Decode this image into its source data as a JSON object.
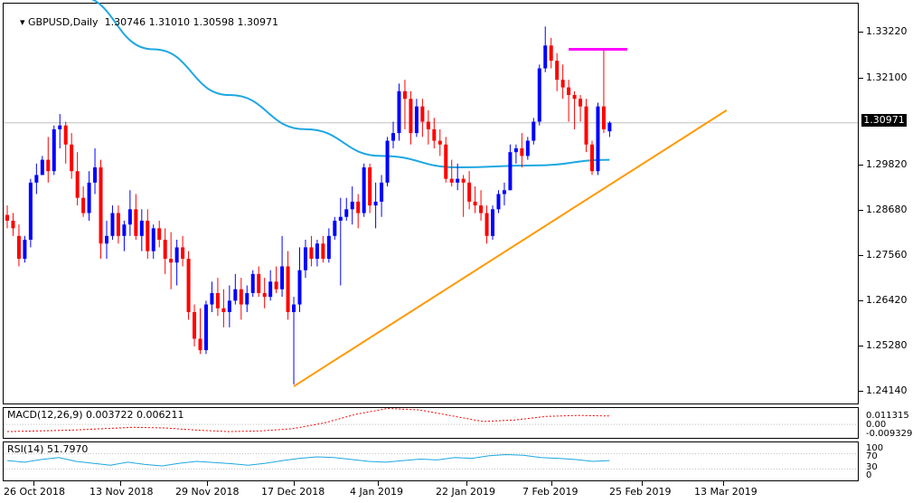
{
  "header": {
    "symbol_label": "GBPUSD,Daily",
    "ohlc_text": "1.30746 1.31010 1.30598 1.30971"
  },
  "price_axis": {
    "labels": [
      "1.33220",
      "1.32100",
      "1.30971",
      "1.29820",
      "1.28680",
      "1.27560",
      "1.26420",
      "1.25280",
      "1.24140"
    ],
    "current_price": "1.30971"
  },
  "macd": {
    "label": "MACD(12,26,9) 0.003722 0.006211",
    "axis_labels": [
      "0.011315",
      "0.00",
      "-0.009329"
    ]
  },
  "rsi": {
    "label": "RSI(14) 51.7970",
    "axis_labels": [
      "100",
      "70",
      "30",
      "0"
    ]
  },
  "date_axis": {
    "labels": [
      "26 Oct 2018",
      "13 Nov 2018",
      "29 Nov 2018",
      "17 Dec 2018",
      "4 Jan 2019",
      "22 Jan 2019",
      "7 Feb 2019",
      "25 Feb 2019",
      "13 Mar 2019"
    ]
  },
  "colors": {
    "bull": "#0000ff",
    "bear": "#ff0000",
    "ma": "#1ea7e1",
    "trendline": "#ff9900",
    "resistance": "#ff00ff",
    "macd_signal": "#ff0000",
    "rsi_line": "#1ea7e1",
    "current_price_bg": "#000000"
  },
  "chart_data": {
    "type": "candlestick",
    "title": "GBPUSD,Daily",
    "timeframe": "Daily",
    "last_ohlc": {
      "open": 1.30746,
      "high": 1.3101,
      "low": 1.30598,
      "close": 1.30971
    },
    "ylim": [
      1.236,
      1.341
    ],
    "candles": [
      {
        "o": 1.2855,
        "h": 1.288,
        "l": 1.282,
        "c": 1.284
      },
      {
        "o": 1.284,
        "h": 1.286,
        "l": 1.28,
        "c": 1.282
      },
      {
        "o": 1.28,
        "h": 1.283,
        "l": 1.272,
        "c": 1.274
      },
      {
        "o": 1.274,
        "h": 1.28,
        "l": 1.273,
        "c": 1.279
      },
      {
        "o": 1.279,
        "h": 1.295,
        "l": 1.277,
        "c": 1.294
      },
      {
        "o": 1.294,
        "h": 1.299,
        "l": 1.291,
        "c": 1.296
      },
      {
        "o": 1.296,
        "h": 1.301,
        "l": 1.296,
        "c": 1.3
      },
      {
        "o": 1.3,
        "h": 1.306,
        "l": 1.294,
        "c": 1.297
      },
      {
        "o": 1.297,
        "h": 1.309,
        "l": 1.296,
        "c": 1.308
      },
      {
        "o": 1.308,
        "h": 1.312,
        "l": 1.303,
        "c": 1.309
      },
      {
        "o": 1.309,
        "h": 1.31,
        "l": 1.299,
        "c": 1.304
      },
      {
        "o": 1.304,
        "h": 1.307,
        "l": 1.295,
        "c": 1.297
      },
      {
        "o": 1.297,
        "h": 1.302,
        "l": 1.288,
        "c": 1.29
      },
      {
        "o": 1.29,
        "h": 1.293,
        "l": 1.285,
        "c": 1.286
      },
      {
        "o": 1.286,
        "h": 1.297,
        "l": 1.284,
        "c": 1.294
      },
      {
        "o": 1.294,
        "h": 1.303,
        "l": 1.291,
        "c": 1.298
      },
      {
        "o": 1.298,
        "h": 1.3,
        "l": 1.274,
        "c": 1.278
      },
      {
        "o": 1.278,
        "h": 1.284,
        "l": 1.274,
        "c": 1.28
      },
      {
        "o": 1.28,
        "h": 1.288,
        "l": 1.279,
        "c": 1.286
      },
      {
        "o": 1.286,
        "h": 1.288,
        "l": 1.278,
        "c": 1.28
      },
      {
        "o": 1.28,
        "h": 1.284,
        "l": 1.276,
        "c": 1.283
      },
      {
        "o": 1.283,
        "h": 1.292,
        "l": 1.28,
        "c": 1.287
      },
      {
        "o": 1.287,
        "h": 1.291,
        "l": 1.279,
        "c": 1.28
      },
      {
        "o": 1.28,
        "h": 1.287,
        "l": 1.276,
        "c": 1.284
      },
      {
        "o": 1.284,
        "h": 1.287,
        "l": 1.274,
        "c": 1.276
      },
      {
        "o": 1.276,
        "h": 1.283,
        "l": 1.274,
        "c": 1.282
      },
      {
        "o": 1.282,
        "h": 1.284,
        "l": 1.277,
        "c": 1.279
      },
      {
        "o": 1.279,
        "h": 1.282,
        "l": 1.27,
        "c": 1.274
      },
      {
        "o": 1.274,
        "h": 1.281,
        "l": 1.266,
        "c": 1.273
      },
      {
        "o": 1.273,
        "h": 1.279,
        "l": 1.267,
        "c": 1.277
      },
      {
        "o": 1.277,
        "h": 1.28,
        "l": 1.272,
        "c": 1.274
      },
      {
        "o": 1.274,
        "h": 1.276,
        "l": 1.258,
        "c": 1.26
      },
      {
        "o": 1.26,
        "h": 1.262,
        "l": 1.251,
        "c": 1.253
      },
      {
        "o": 1.253,
        "h": 1.261,
        "l": 1.249,
        "c": 1.25
      },
      {
        "o": 1.25,
        "h": 1.263,
        "l": 1.249,
        "c": 1.262
      },
      {
        "o": 1.262,
        "h": 1.268,
        "l": 1.26,
        "c": 1.265
      },
      {
        "o": 1.265,
        "h": 1.269,
        "l": 1.259,
        "c": 1.261
      },
      {
        "o": 1.261,
        "h": 1.266,
        "l": 1.256,
        "c": 1.26
      },
      {
        "o": 1.26,
        "h": 1.267,
        "l": 1.256,
        "c": 1.263
      },
      {
        "o": 1.263,
        "h": 1.27,
        "l": 1.262,
        "c": 1.266
      },
      {
        "o": 1.266,
        "h": 1.269,
        "l": 1.258,
        "c": 1.262
      },
      {
        "o": 1.262,
        "h": 1.267,
        "l": 1.26,
        "c": 1.265
      },
      {
        "o": 1.265,
        "h": 1.271,
        "l": 1.264,
        "c": 1.27
      },
      {
        "o": 1.27,
        "h": 1.272,
        "l": 1.264,
        "c": 1.265
      },
      {
        "o": 1.265,
        "h": 1.269,
        "l": 1.261,
        "c": 1.264
      },
      {
        "o": 1.264,
        "h": 1.271,
        "l": 1.263,
        "c": 1.268
      },
      {
        "o": 1.268,
        "h": 1.272,
        "l": 1.265,
        "c": 1.266
      },
      {
        "o": 1.266,
        "h": 1.28,
        "l": 1.264,
        "c": 1.272
      },
      {
        "o": 1.272,
        "h": 1.276,
        "l": 1.258,
        "c": 1.26
      },
      {
        "o": 1.26,
        "h": 1.264,
        "l": 1.241,
        "c": 1.262
      },
      {
        "o": 1.262,
        "h": 1.277,
        "l": 1.26,
        "c": 1.271
      },
      {
        "o": 1.271,
        "h": 1.279,
        "l": 1.269,
        "c": 1.277
      },
      {
        "o": 1.277,
        "h": 1.28,
        "l": 1.272,
        "c": 1.274
      },
      {
        "o": 1.274,
        "h": 1.279,
        "l": 1.272,
        "c": 1.278
      },
      {
        "o": 1.278,
        "h": 1.28,
        "l": 1.273,
        "c": 1.274
      },
      {
        "o": 1.274,
        "h": 1.282,
        "l": 1.273,
        "c": 1.28
      },
      {
        "o": 1.28,
        "h": 1.285,
        "l": 1.279,
        "c": 1.284
      },
      {
        "o": 1.284,
        "h": 1.29,
        "l": 1.267,
        "c": 1.285
      },
      {
        "o": 1.285,
        "h": 1.29,
        "l": 1.284,
        "c": 1.287
      },
      {
        "o": 1.287,
        "h": 1.293,
        "l": 1.283,
        "c": 1.289
      },
      {
        "o": 1.289,
        "h": 1.291,
        "l": 1.282,
        "c": 1.286
      },
      {
        "o": 1.286,
        "h": 1.299,
        "l": 1.285,
        "c": 1.298
      },
      {
        "o": 1.298,
        "h": 1.299,
        "l": 1.286,
        "c": 1.288
      },
      {
        "o": 1.288,
        "h": 1.294,
        "l": 1.282,
        "c": 1.289
      },
      {
        "o": 1.289,
        "h": 1.296,
        "l": 1.285,
        "c": 1.294
      },
      {
        "o": 1.294,
        "h": 1.306,
        "l": 1.293,
        "c": 1.305
      },
      {
        "o": 1.305,
        "h": 1.31,
        "l": 1.303,
        "c": 1.307
      },
      {
        "o": 1.307,
        "h": 1.32,
        "l": 1.305,
        "c": 1.318
      },
      {
        "o": 1.318,
        "h": 1.321,
        "l": 1.308,
        "c": 1.316
      },
      {
        "o": 1.316,
        "h": 1.318,
        "l": 1.304,
        "c": 1.307
      },
      {
        "o": 1.307,
        "h": 1.316,
        "l": 1.306,
        "c": 1.314
      },
      {
        "o": 1.314,
        "h": 1.316,
        "l": 1.306,
        "c": 1.31
      },
      {
        "o": 1.31,
        "h": 1.313,
        "l": 1.304,
        "c": 1.308
      },
      {
        "o": 1.308,
        "h": 1.311,
        "l": 1.303,
        "c": 1.305
      },
      {
        "o": 1.305,
        "h": 1.308,
        "l": 1.301,
        "c": 1.304
      },
      {
        "o": 1.304,
        "h": 1.306,
        "l": 1.294,
        "c": 1.295
      },
      {
        "o": 1.295,
        "h": 1.3,
        "l": 1.293,
        "c": 1.294
      },
      {
        "o": 1.294,
        "h": 1.299,
        "l": 1.292,
        "c": 1.295
      },
      {
        "o": 1.295,
        "h": 1.296,
        "l": 1.285,
        "c": 1.294
      },
      {
        "o": 1.294,
        "h": 1.297,
        "l": 1.287,
        "c": 1.289
      },
      {
        "o": 1.289,
        "h": 1.293,
        "l": 1.286,
        "c": 1.288
      },
      {
        "o": 1.288,
        "h": 1.292,
        "l": 1.284,
        "c": 1.286
      },
      {
        "o": 1.286,
        "h": 1.288,
        "l": 1.278,
        "c": 1.28
      },
      {
        "o": 1.28,
        "h": 1.288,
        "l": 1.279,
        "c": 1.287
      },
      {
        "o": 1.287,
        "h": 1.292,
        "l": 1.286,
        "c": 1.291
      },
      {
        "o": 1.291,
        "h": 1.294,
        "l": 1.288,
        "c": 1.292
      },
      {
        "o": 1.292,
        "h": 1.304,
        "l": 1.292,
        "c": 1.302
      },
      {
        "o": 1.302,
        "h": 1.304,
        "l": 1.299,
        "c": 1.303
      },
      {
        "o": 1.303,
        "h": 1.307,
        "l": 1.298,
        "c": 1.301
      },
      {
        "o": 1.301,
        "h": 1.306,
        "l": 1.3,
        "c": 1.305
      },
      {
        "o": 1.305,
        "h": 1.311,
        "l": 1.304,
        "c": 1.31
      },
      {
        "o": 1.31,
        "h": 1.325,
        "l": 1.309,
        "c": 1.324
      },
      {
        "o": 1.324,
        "h": 1.335,
        "l": 1.323,
        "c": 1.33
      },
      {
        "o": 1.33,
        "h": 1.332,
        "l": 1.324,
        "c": 1.326
      },
      {
        "o": 1.326,
        "h": 1.328,
        "l": 1.318,
        "c": 1.321
      },
      {
        "o": 1.321,
        "h": 1.325,
        "l": 1.316,
        "c": 1.319
      },
      {
        "o": 1.319,
        "h": 1.321,
        "l": 1.31,
        "c": 1.317
      },
      {
        "o": 1.317,
        "h": 1.318,
        "l": 1.308,
        "c": 1.316
      },
      {
        "o": 1.316,
        "h": 1.317,
        "l": 1.31,
        "c": 1.314
      },
      {
        "o": 1.314,
        "h": 1.316,
        "l": 1.302,
        "c": 1.304
      },
      {
        "o": 1.304,
        "h": 1.305,
        "l": 1.296,
        "c": 1.297
      },
      {
        "o": 1.297,
        "h": 1.315,
        "l": 1.296,
        "c": 1.314
      },
      {
        "o": 1.314,
        "h": 1.329,
        "l": 1.307,
        "c": 1.308
      },
      {
        "o": 1.30746,
        "h": 1.3101,
        "l": 1.30598,
        "c": 1.30971
      }
    ],
    "moving_average": [
      1.343,
      1.329,
      1.317,
      1.308,
      1.301,
      1.298,
      1.2985,
      1.3
    ],
    "trendline": {
      "from": {
        "bar": 49,
        "price": 1.2405
      },
      "to": {
        "bar": 123,
        "price": 1.313
      }
    },
    "resistance": {
      "from_bar": 96,
      "to_bar": 106,
      "price": 1.329
    },
    "macd": [
      -0.005,
      -0.0045,
      -0.004,
      -0.003,
      -0.002,
      -0.0025,
      -0.004,
      -0.005,
      -0.0045,
      -0.003,
      0.001,
      0.007,
      0.011,
      0.01,
      0.006,
      0.002,
      0.003,
      0.0055,
      0.0062,
      0.0058
    ],
    "rsi": [
      52,
      48,
      55,
      60,
      50,
      45,
      40,
      48,
      42,
      38,
      45,
      50,
      47,
      44,
      40,
      45,
      52,
      58,
      62,
      60,
      55,
      50,
      48,
      52,
      56,
      54,
      60,
      58,
      65,
      68,
      66,
      60,
      58,
      55,
      50,
      52
    ]
  }
}
